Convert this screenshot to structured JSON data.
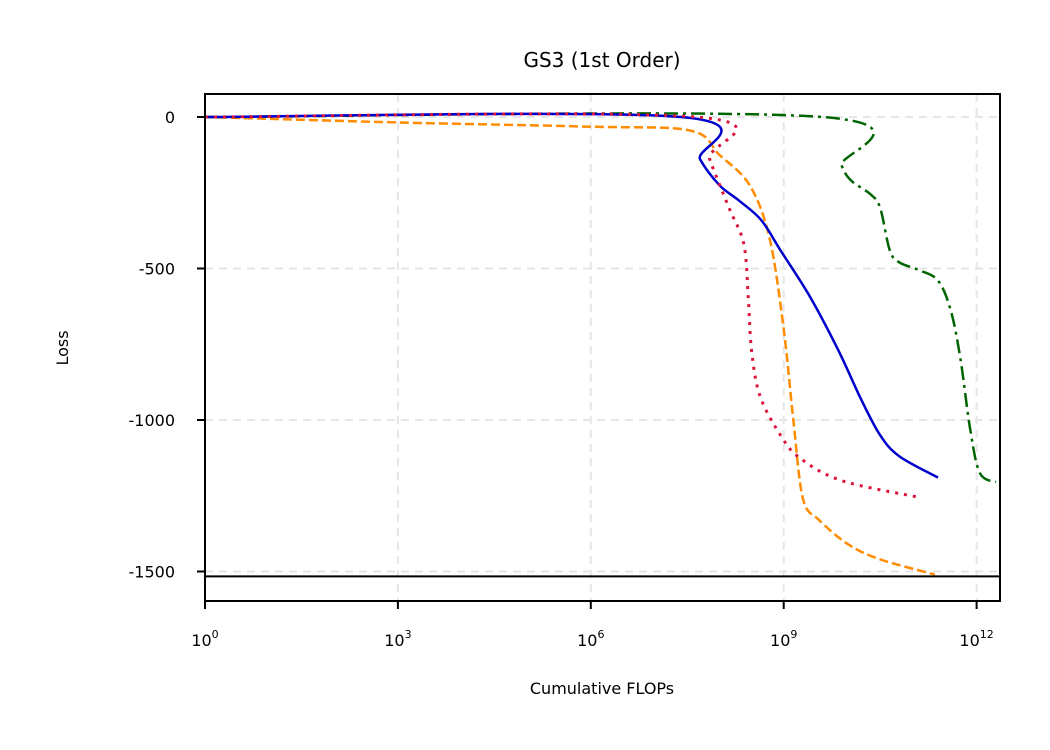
{
  "chart_data": {
    "type": "line",
    "title": "GS3 (1st Order)",
    "xlabel": "Cumulative FLOPs",
    "ylabel": "Loss",
    "xscale": "log",
    "xlim_log10": [
      0,
      12.35
    ],
    "ylim": [
      -1590,
      75
    ],
    "x_ticks": [
      {
        "log10": 0,
        "base": "10",
        "exp": "0"
      },
      {
        "log10": 3,
        "base": "10",
        "exp": "3"
      },
      {
        "log10": 6,
        "base": "10",
        "exp": "6"
      },
      {
        "log10": 9,
        "base": "10",
        "exp": "9"
      },
      {
        "log10": 12,
        "base": "10",
        "exp": "12"
      }
    ],
    "y_ticks": [
      {
        "value": 0,
        "label": "0"
      },
      {
        "value": -500,
        "label": "-500"
      },
      {
        "value": -1000,
        "label": "-1000"
      },
      {
        "value": -1500,
        "label": "-1500"
      }
    ],
    "grid": true,
    "reference_line": {
      "value": -1516,
      "color": "#000000",
      "style": "solid"
    },
    "legend": null,
    "series": [
      {
        "name": "orange-dashed",
        "color": "#FF8C00",
        "style": "dashed",
        "points_log10x": [
          [
            0,
            0
          ],
          [
            3,
            -18
          ],
          [
            6,
            -32
          ],
          [
            7.55,
            -45
          ],
          [
            8.0,
            -125
          ],
          [
            8.47,
            -225
          ],
          [
            8.78,
            -400
          ],
          [
            9.0,
            -700
          ],
          [
            9.15,
            -1000
          ],
          [
            9.3,
            -1260
          ],
          [
            9.55,
            -1330
          ],
          [
            10.0,
            -1410
          ],
          [
            10.5,
            -1460
          ],
          [
            11.35,
            -1510
          ]
        ]
      },
      {
        "name": "green-dashdot",
        "color": "#006400",
        "style": "dashdot",
        "points_log10x": [
          [
            0,
            0
          ],
          [
            9.6,
            0
          ],
          [
            9.9,
            -160
          ],
          [
            10.05,
            -210
          ],
          [
            10.35,
            -255
          ],
          [
            10.5,
            -300
          ],
          [
            10.65,
            -440
          ],
          [
            10.8,
            -480
          ],
          [
            11.1,
            -505
          ],
          [
            11.4,
            -540
          ],
          [
            11.6,
            -640
          ],
          [
            11.75,
            -800
          ],
          [
            11.9,
            -1030
          ],
          [
            12.05,
            -1175
          ],
          [
            12.3,
            -1205
          ]
        ]
      },
      {
        "name": "blue-solid",
        "color": "#0000CD",
        "style": "solid",
        "points_log10x": [
          [
            0,
            0
          ],
          [
            7.4,
            0
          ],
          [
            7.7,
            -140
          ],
          [
            8.0,
            -225
          ],
          [
            8.3,
            -275
          ],
          [
            8.65,
            -340
          ],
          [
            8.95,
            -440
          ],
          [
            9.4,
            -590
          ],
          [
            9.85,
            -770
          ],
          [
            10.2,
            -930
          ],
          [
            10.5,
            -1050
          ],
          [
            10.8,
            -1120
          ],
          [
            11.4,
            -1190
          ]
        ]
      },
      {
        "name": "red-dotted",
        "color": "#DC143C",
        "style": "dotted",
        "points_log10x": [
          [
            0,
            0
          ],
          [
            7.65,
            0
          ],
          [
            7.85,
            -140
          ],
          [
            8.15,
            -300
          ],
          [
            8.38,
            -420
          ],
          [
            8.45,
            -600
          ],
          [
            8.5,
            -770
          ],
          [
            8.63,
            -920
          ],
          [
            8.95,
            -1050
          ],
          [
            9.25,
            -1125
          ],
          [
            9.9,
            -1200
          ],
          [
            11.1,
            -1255
          ]
        ]
      }
    ]
  }
}
